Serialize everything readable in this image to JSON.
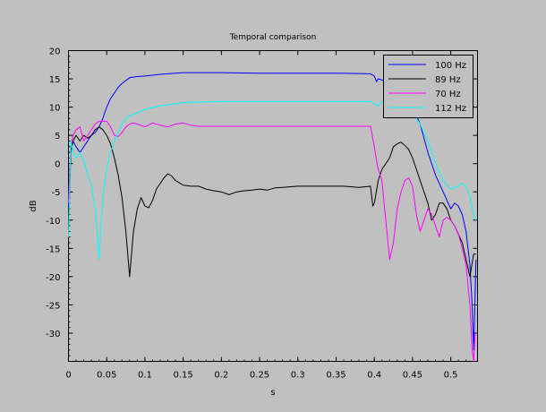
{
  "chart_data": {
    "type": "line",
    "title": "Temporal comparison",
    "xlabel": "s",
    "ylabel": "dB",
    "xlim": [
      0,
      0.535
    ],
    "ylim": [
      -35,
      20
    ],
    "xticks": [
      0,
      0.05,
      0.1,
      0.15,
      0.2,
      0.25,
      0.3,
      0.35,
      0.4,
      0.45,
      0.5
    ],
    "xtick_labels": [
      "0",
      "0.05",
      "0.1",
      "0.15",
      "0.2",
      "0.25",
      "0.3",
      "0.35",
      "0.4",
      "0.45",
      "0.5"
    ],
    "yticks": [
      20,
      15,
      10,
      5,
      0,
      -5,
      -10,
      -15,
      -20,
      -25,
      -30
    ],
    "ytick_labels": [
      "20",
      "15",
      "10",
      "5",
      "0",
      "-5",
      "-10",
      "-15",
      "-20",
      "-25",
      "-30"
    ],
    "grid": false,
    "legend_position": "top-right",
    "series": [
      {
        "name": "100 Hz",
        "color": "#0000ff",
        "x": [
          0,
          0.003,
          0.006,
          0.01,
          0.015,
          0.02,
          0.025,
          0.03,
          0.035,
          0.04,
          0.045,
          0.05,
          0.055,
          0.06,
          0.065,
          0.07,
          0.08,
          0.09,
          0.1,
          0.12,
          0.15,
          0.2,
          0.25,
          0.3,
          0.35,
          0.395,
          0.4,
          0.403,
          0.405,
          0.41,
          0.42,
          0.43,
          0.44,
          0.45,
          0.46,
          0.47,
          0.48,
          0.49,
          0.5,
          0.505,
          0.51,
          0.515,
          0.52,
          0.525,
          0.528,
          0.53,
          0.533
        ],
        "y": [
          -8,
          2,
          4,
          3,
          2,
          3,
          4,
          5,
          5.5,
          6.5,
          8,
          10,
          11.5,
          12.5,
          13.5,
          14.2,
          15.2,
          15.4,
          15.5,
          15.8,
          16.1,
          16.1,
          16,
          16,
          16,
          15.9,
          15.5,
          14.5,
          15,
          14.8,
          14,
          13,
          12,
          10,
          7,
          2,
          -2,
          -5,
          -8,
          -7,
          -7.5,
          -9,
          -12,
          -18,
          -25,
          -33,
          -17
        ]
      },
      {
        "name": "89 Hz",
        "color": "#000000",
        "x": [
          0,
          0.003,
          0.006,
          0.01,
          0.015,
          0.02,
          0.025,
          0.03,
          0.035,
          0.04,
          0.045,
          0.05,
          0.055,
          0.06,
          0.065,
          0.07,
          0.075,
          0.08,
          0.085,
          0.09,
          0.095,
          0.1,
          0.105,
          0.11,
          0.115,
          0.12,
          0.125,
          0.13,
          0.135,
          0.14,
          0.15,
          0.16,
          0.17,
          0.18,
          0.19,
          0.2,
          0.21,
          0.22,
          0.23,
          0.24,
          0.25,
          0.26,
          0.27,
          0.28,
          0.3,
          0.32,
          0.34,
          0.36,
          0.38,
          0.395,
          0.398,
          0.4,
          0.402,
          0.405,
          0.41,
          0.415,
          0.42,
          0.425,
          0.43,
          0.435,
          0.44,
          0.445,
          0.45,
          0.455,
          0.46,
          0.465,
          0.47,
          0.475,
          0.48,
          0.485,
          0.49,
          0.495,
          0.5,
          0.505,
          0.51,
          0.515,
          0.52,
          0.525,
          0.53,
          0.533
        ],
        "y": [
          -12,
          2,
          4,
          5,
          4,
          5,
          4.5,
          5,
          6,
          6.5,
          6,
          5,
          3.5,
          1,
          -2,
          -6,
          -12,
          -20,
          -12,
          -8,
          -6,
          -7.5,
          -7.8,
          -6.5,
          -4.5,
          -3.5,
          -2.5,
          -1.8,
          -2.2,
          -3,
          -3.8,
          -4,
          -4,
          -4.5,
          -4.8,
          -5,
          -5.5,
          -5,
          -4.8,
          -4.7,
          -4.5,
          -4.7,
          -4.3,
          -4.2,
          -4,
          -4,
          -4,
          -4,
          -4.2,
          -4,
          -7.5,
          -7,
          -5.5,
          -3,
          -1,
          0,
          1,
          3,
          3.5,
          3.8,
          3.2,
          2.5,
          1,
          -1,
          -3,
          -5,
          -7,
          -10,
          -9,
          -7,
          -7,
          -8,
          -10,
          -11,
          -12.5,
          -14,
          -17,
          -20,
          -16,
          -16
        ]
      },
      {
        "name": "70 Hz",
        "color": "#ff00ff",
        "x": [
          0,
          0.003,
          0.006,
          0.01,
          0.015,
          0.02,
          0.025,
          0.03,
          0.035,
          0.04,
          0.045,
          0.05,
          0.055,
          0.06,
          0.065,
          0.07,
          0.075,
          0.08,
          0.085,
          0.09,
          0.1,
          0.11,
          0.12,
          0.13,
          0.14,
          0.15,
          0.16,
          0.17,
          0.2,
          0.25,
          0.3,
          0.35,
          0.395,
          0.4,
          0.403,
          0.405,
          0.41,
          0.415,
          0.42,
          0.425,
          0.43,
          0.435,
          0.44,
          0.445,
          0.45,
          0.455,
          0.46,
          0.465,
          0.47,
          0.475,
          0.48,
          0.485,
          0.49,
          0.495,
          0.5,
          0.505,
          0.51,
          0.515,
          0.52,
          0.525,
          0.528,
          0.53,
          0.532
        ],
        "y": [
          -7,
          3,
          5,
          6,
          6.5,
          4,
          5,
          6,
          7,
          7.5,
          7.5,
          7.5,
          6.5,
          5,
          4.8,
          5.5,
          6.5,
          7,
          7.2,
          7,
          6.5,
          7.2,
          6.8,
          6.5,
          7,
          7.2,
          6.8,
          6.6,
          6.6,
          6.6,
          6.6,
          6.6,
          6.6,
          3,
          0.5,
          -1,
          -3,
          -10,
          -17,
          -14,
          -8,
          -5,
          -3,
          -2.5,
          -4,
          -9,
          -12,
          -10,
          -8,
          -9,
          -11,
          -13,
          -10,
          -9.5,
          -10,
          -11,
          -12.5,
          -15,
          -18,
          -25,
          -33,
          -35,
          -30
        ]
      },
      {
        "name": "112 Hz",
        "color": "#00ffff",
        "x": [
          0,
          0.003,
          0.006,
          0.01,
          0.015,
          0.02,
          0.025,
          0.03,
          0.035,
          0.038,
          0.04,
          0.043,
          0.046,
          0.05,
          0.055,
          0.06,
          0.065,
          0.07,
          0.075,
          0.08,
          0.09,
          0.1,
          0.12,
          0.15,
          0.2,
          0.25,
          0.3,
          0.35,
          0.395,
          0.4,
          0.405,
          0.41,
          0.42,
          0.43,
          0.44,
          0.45,
          0.46,
          0.47,
          0.48,
          0.49,
          0.5,
          0.51,
          0.515,
          0.52,
          0.525,
          0.53,
          0.533
        ],
        "y": [
          -13,
          4,
          2,
          1,
          2,
          0.5,
          -2,
          -4,
          -8,
          -13,
          -17,
          -10,
          -5,
          -1,
          2,
          4,
          5.5,
          7,
          8,
          8.5,
          9,
          9.6,
          10.2,
          10.8,
          11,
          11,
          11,
          11,
          11,
          10.5,
          10.2,
          11,
          10.8,
          10,
          9.5,
          9,
          7,
          4,
          0,
          -3,
          -4.5,
          -4,
          -3.5,
          -4,
          -6,
          -9,
          -10
        ]
      }
    ]
  }
}
